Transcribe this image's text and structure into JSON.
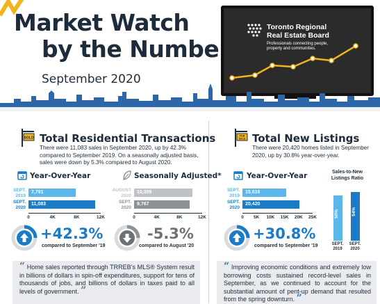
{
  "header": {
    "title_line1": "Market Watch",
    "title_line2": "by the Numbers",
    "subtitle": "September 2020",
    "brand_name_line1": "Toronto Regional",
    "brand_name_line2": "Real Estate Board",
    "brand_tagline_line1": "Professionals connecting people,",
    "brand_tagline_line2": "property and communities."
  },
  "transactions": {
    "title": "Total Residential Transactions",
    "icon": "sold-sign-icon",
    "description": "There were 11,083 sales in September 2020, up by 42.3% compared to September 2019. On a seasonally adjusted basis, sales were down by 5.3% compared to August 2020.",
    "yoy_heading": "Year-Over-Year",
    "sa_heading": "Seasonally Adjusted*",
    "yoy_pct": "+42.3%",
    "yoy_compare": "compared to September '19",
    "sa_pct": "-5.3%",
    "sa_compare": "compared to August '20",
    "quote": "Home sales reported through TRREB’s MLS® System result in billions of dollars in spin-off expenditures, support for tens of thousands of jobs, and billions of dollars in taxes paid to all levels of government."
  },
  "listings": {
    "title": "Total New Listings",
    "icon": "for-sale-sign-icon",
    "description": "There were 20,420 homes listed in September 2020, up by 30.8% year-over-year.",
    "yoy_heading": "Year-Over-Year",
    "ratio_heading_line1": "Sales-to-New",
    "ratio_heading_line2": "Listings Ratio",
    "yoy_pct": "+30.8%",
    "yoy_compare": "compared to September '19",
    "quote": "Improving economic conditions and extremely low borrowing costs sustained record-level sales in September, as we continued to account for the substantial amount of pent-up demand that resulted from the spring downturn."
  },
  "colors": {
    "navy": "#1d2b3a",
    "blue_dark": "#1b7bc6",
    "blue_light": "#5bb7ea",
    "grey_dark": "#8d9196",
    "grey_light": "#bfc3c7",
    "gold": "#f3b41b"
  },
  "chart_data": [
    {
      "type": "bar",
      "orientation": "horizontal",
      "categories": [
        "SEPT. 2019",
        "SEPT. 2020"
      ],
      "values": [
        7791,
        11083
      ],
      "value_labels": [
        "7,791",
        "11,083"
      ],
      "xlim": [
        0,
        12000
      ],
      "ticks": [
        "0",
        "4K",
        "8K",
        "12K"
      ]
    },
    {
      "type": "bar",
      "orientation": "horizontal",
      "categories": [
        "AUGUST 2020",
        "SEPT. 2020"
      ],
      "values": [
        10309,
        9767
      ],
      "value_labels": [
        "10,309",
        "9,767"
      ],
      "xlim": [
        0,
        12000
      ],
      "ticks": [
        "0",
        "4K",
        "8K",
        "12K"
      ]
    },
    {
      "type": "bar",
      "orientation": "horizontal",
      "categories": [
        "SEPT. 2019",
        "SEPT. 2020"
      ],
      "values": [
        15616,
        20420
      ],
      "value_labels": [
        "15,616",
        "20,420"
      ],
      "xlim": [
        0,
        25000
      ],
      "ticks": [
        "0",
        "5K",
        "10K",
        "15K",
        "20K",
        "25K"
      ]
    },
    {
      "type": "bar",
      "orientation": "vertical",
      "categories": [
        "SEPT. 2019",
        "SEPT. 2020"
      ],
      "values": [
        50,
        54
      ],
      "value_labels": [
        "50%",
        "54%"
      ]
    }
  ]
}
